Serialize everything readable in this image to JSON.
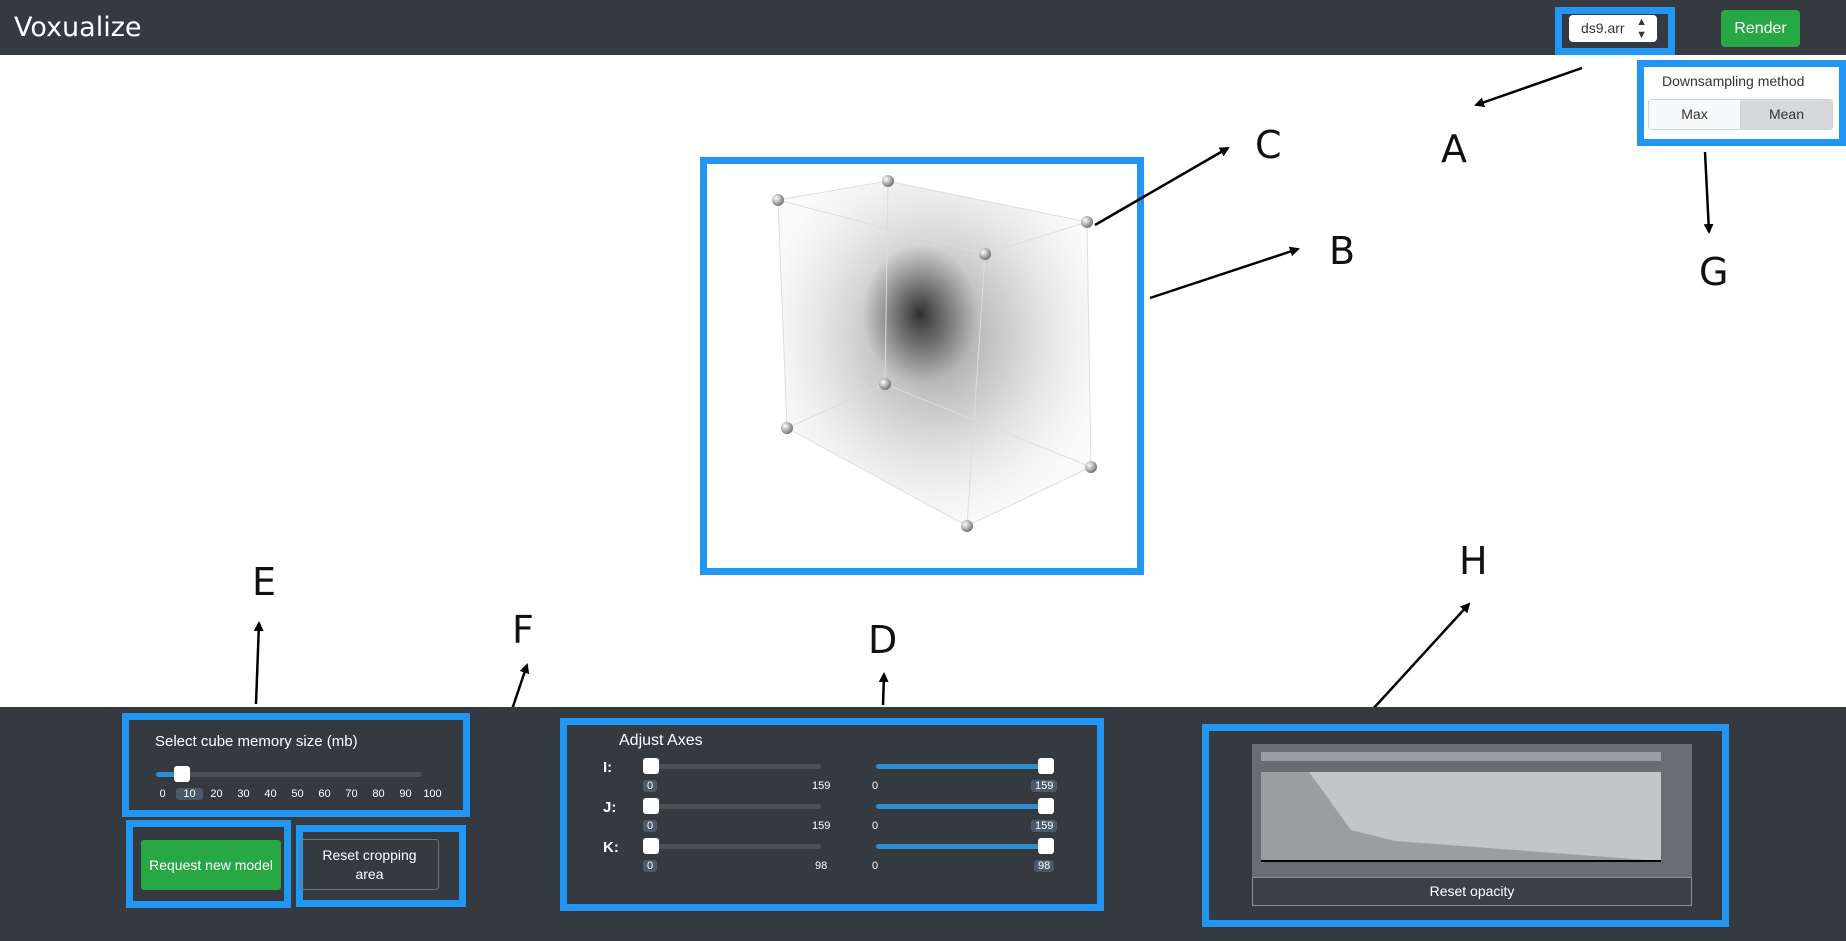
{
  "header": {
    "app_title": "Voxualize",
    "file_select_value": "ds9.arr",
    "render_label": "Render"
  },
  "downsampling": {
    "title": "Downsampling method",
    "options": [
      "Max",
      "Mean"
    ],
    "selected": "Mean"
  },
  "annotations": {
    "A": "A",
    "B": "B",
    "C": "C",
    "D": "D",
    "E": "E",
    "F": "F",
    "G": "G",
    "H": "H"
  },
  "memory": {
    "title": "Select cube memory size (mb)",
    "ticks": [
      "0",
      "10",
      "20",
      "30",
      "40",
      "50",
      "60",
      "70",
      "80",
      "90",
      "100"
    ],
    "selected": "10"
  },
  "buttons": {
    "request_new_model": "Request new model",
    "reset_cropping_line1": "Reset cropping",
    "reset_cropping_line2": "area",
    "reset_opacity": "Reset opacity"
  },
  "axes": {
    "title": "Adjust Axes",
    "rows": [
      {
        "label": "I:",
        "min_left": "0",
        "max_left": "159",
        "min_right": "0",
        "max_right": "159"
      },
      {
        "label": "J:",
        "min_left": "0",
        "max_left": "159",
        "min_right": "0",
        "max_right": "159"
      },
      {
        "label": "K:",
        "min_left": "0",
        "max_left": "98",
        "min_right": "0",
        "max_right": "98"
      }
    ]
  },
  "colors": {
    "topbar": "#343a40",
    "highlight": "#2196f3",
    "green": "#28a745",
    "slider_blue": "#2c8fd6"
  }
}
